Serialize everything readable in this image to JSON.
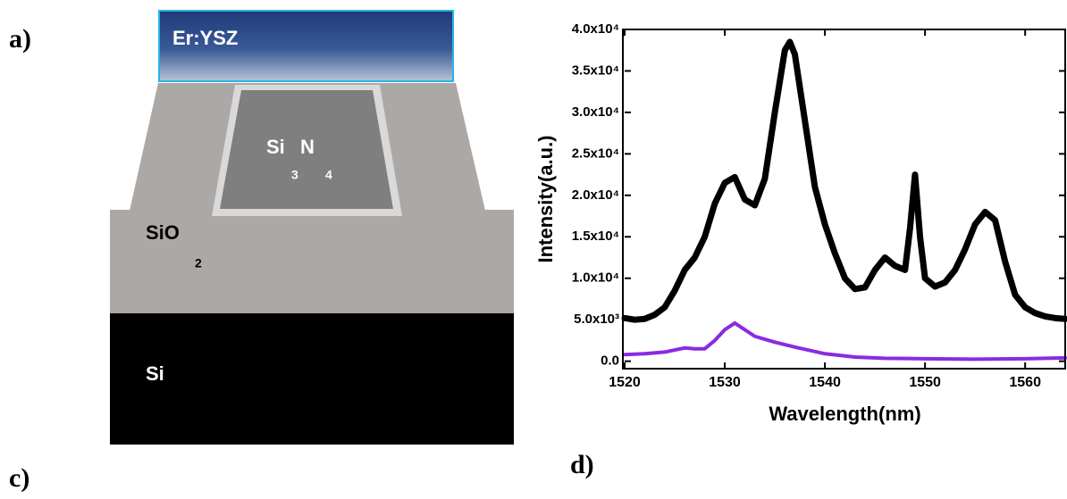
{
  "panel_labels": {
    "a": "a)",
    "c": "c)",
    "d": "d)"
  },
  "diagram": {
    "cladding_top": "Er:YSZ",
    "core": [
      "Si",
      "N",
      "3",
      "4"
    ],
    "oxide": [
      "SiO",
      "2"
    ],
    "substrate": "Si"
  },
  "chart_data": {
    "type": "line",
    "xlabel": "Wavelength(nm)",
    "ylabel": "Intensity(a.u.)",
    "xlim": [
      1520,
      1564
    ],
    "xticks": [
      1520,
      1530,
      1540,
      1550,
      1560
    ],
    "ylim": [
      -900,
      40000
    ],
    "yticks": [
      {
        "value": 0,
        "label": "0.0"
      },
      {
        "value": 5000,
        "label": "5.0x10³"
      },
      {
        "value": 10000,
        "label": "1.0x10⁴"
      },
      {
        "value": 15000,
        "label": "1.5x10⁴"
      },
      {
        "value": 20000,
        "label": "2.0x10⁴"
      },
      {
        "value": 25000,
        "label": "2.5x10⁴"
      },
      {
        "value": 30000,
        "label": "3.0x10⁴"
      },
      {
        "value": 35000,
        "label": "3.5x10⁴"
      },
      {
        "value": 40000,
        "label": "4.0x10⁴"
      }
    ],
    "series": [
      {
        "color": "#000000",
        "x": [
          1520,
          1521,
          1522,
          1523,
          1524,
          1525,
          1526,
          1527,
          1528,
          1529,
          1530,
          1531,
          1532,
          1533,
          1534,
          1535,
          1536,
          1536.5,
          1537,
          1538,
          1539,
          1540,
          1541,
          1542,
          1543,
          1544,
          1545,
          1546,
          1547,
          1548,
          1548.5,
          1549,
          1549.5,
          1550,
          1551,
          1552,
          1553,
          1554,
          1555,
          1556,
          1557,
          1558,
          1559,
          1560,
          1561,
          1562,
          1563,
          1564
        ],
        "values": [
          5200,
          5000,
          5100,
          5600,
          6500,
          8500,
          11000,
          12500,
          15000,
          19000,
          21500,
          22200,
          19500,
          18800,
          22000,
          30000,
          37500,
          38500,
          37000,
          29000,
          21000,
          16500,
          13000,
          10000,
          8700,
          8900,
          11000,
          12500,
          11500,
          11000,
          16000,
          22500,
          15000,
          10000,
          9000,
          9500,
          11000,
          13500,
          16500,
          18000,
          17000,
          12000,
          8000,
          6500,
          5800,
          5400,
          5200,
          5100
        ]
      },
      {
        "color": "#8a2be2",
        "x": [
          1520,
          1522,
          1524,
          1526,
          1527,
          1528,
          1529,
          1530,
          1531,
          1532,
          1533,
          1535,
          1537,
          1540,
          1543,
          1546,
          1550,
          1555,
          1560,
          1564
        ],
        "values": [
          800,
          900,
          1100,
          1600,
          1500,
          1500,
          2500,
          3800,
          4600,
          3800,
          3000,
          2300,
          1700,
          900,
          500,
          350,
          300,
          250,
          300,
          400
        ]
      }
    ]
  }
}
